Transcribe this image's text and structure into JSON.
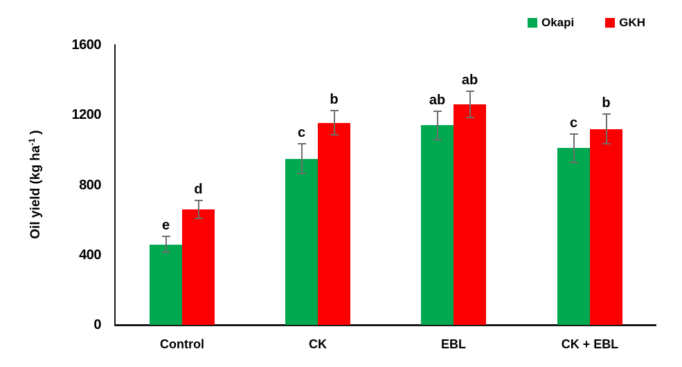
{
  "chart_data": {
    "type": "bar",
    "title": "",
    "ylabel": "Oil yield (kg ha -1 )",
    "ylabel_parts": {
      "prefix": "Oil yield (kg ha",
      "superscript": "-1",
      "suffix": " )"
    },
    "categories": [
      "Control",
      "CK",
      "EBL",
      "CK + EBL"
    ],
    "series": [
      {
        "name": "Okapi",
        "color": "#00A950",
        "values": [
          460,
          950,
          1140,
          1010
        ],
        "errors": [
          45,
          85,
          80,
          80
        ],
        "sig_letters": [
          "e",
          "c",
          "ab",
          "c"
        ]
      },
      {
        "name": "GKH",
        "color": "#FB0000",
        "values": [
          660,
          1155,
          1260,
          1120
        ],
        "errors": [
          50,
          70,
          75,
          85
        ],
        "sig_letters": [
          "d",
          "b",
          "ab",
          "b"
        ]
      }
    ],
    "ylim": [
      0,
      1600
    ],
    "yticks": [
      0,
      400,
      800,
      1200,
      1600
    ],
    "grid": false,
    "legend_position": "top-right",
    "colors": {
      "axis": "#1A1A1A",
      "error_bar": "#6E6E6E",
      "text": "#000000"
    }
  }
}
